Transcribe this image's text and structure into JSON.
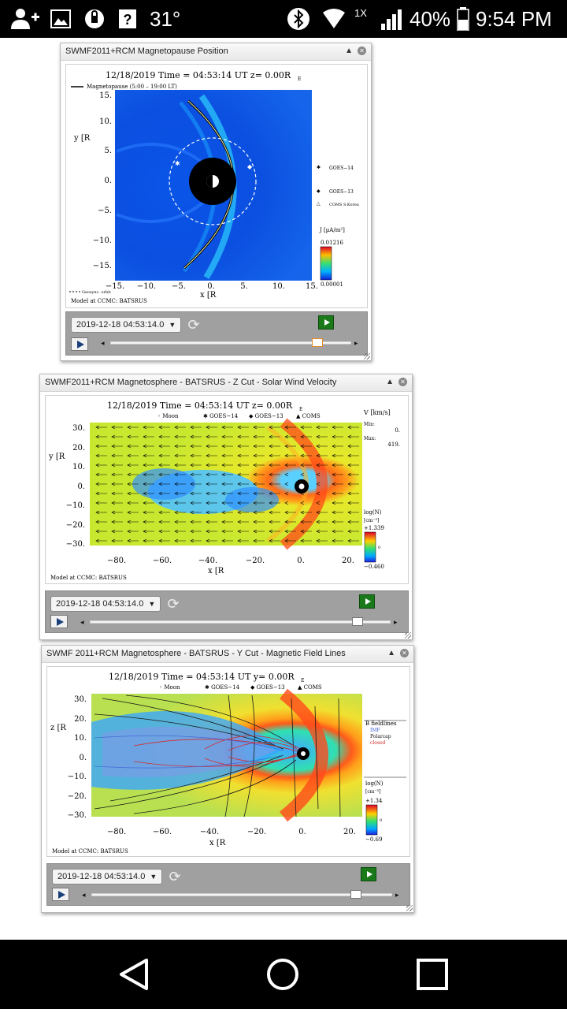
{
  "status_bar": {
    "temperature": "31°",
    "network": "1X",
    "battery": "40%",
    "time": "9:54 PM"
  },
  "panels": [
    {
      "title": "SWMF2011+RCM Magnetopause Position",
      "plot_header": "12/18/2019 Time = 04:53:14 UT z= 0.00R",
      "plot_header_sub": "E",
      "legend_line": "Magnetopause (5:00 – 19:00 LT)",
      "y_label": "y [R",
      "y_ticks": [
        "15.",
        "10.",
        "5.",
        "0.",
        "−5.",
        "−10.",
        "−15."
      ],
      "x_ticks": [
        "−15.",
        "−10.",
        "−5.",
        "0.",
        "5.",
        "10.",
        "15."
      ],
      "x_label": "x [R",
      "geosync_label": "Geosync. orbit",
      "markers": [
        {
          "symbol": "✱",
          "label": "GOES−14"
        },
        {
          "symbol": "◆",
          "label": "GOES−13"
        },
        {
          "symbol": "△",
          "label": "COMS S.Korea"
        }
      ],
      "colorbar_label": "J [µA/m²]",
      "colorbar_max": "0.01216",
      "colorbar_min": "0.00001",
      "credit": "Model at CCMC: BATSRUS",
      "date_select": "2019-12-18 04:53:14.0",
      "slider_fraction": 0.86
    },
    {
      "title": "SWMF2011+RCM Magnetosphere - BATSRUS - Z Cut - Solar Wind Velocity",
      "plot_header": "12/18/2019 Time = 04:53:14 UT z= 0.00R",
      "plot_header_sub": "E",
      "legend_items": [
        "◦ Moon",
        "✱ GOES−14",
        "◆ GOES−13",
        "▲ COMS"
      ],
      "y_label": "y [R",
      "y_ticks": [
        "30.",
        "20.",
        "10.",
        "0.",
        "−10.",
        "−20.",
        "−30."
      ],
      "x_ticks": [
        "−80.",
        "−60.",
        "−40.",
        "−20.",
        "0.",
        "20."
      ],
      "x_label": "x [R",
      "vector_label": "V [km/s]",
      "vec_min_label": "Min:",
      "vec_min": "0.",
      "vec_max_label": "Max:",
      "vec_max": "419.",
      "colorbar_label": "log(N)",
      "colorbar_unit": "[cm⁻³]",
      "colorbar_max": "+1.339",
      "colorbar_mid": "0",
      "colorbar_min": "−0.460",
      "credit": "Model at CCMC: BATSRUS",
      "date_select": "2019-12-18 04:53:14.0",
      "slider_fraction": 0.89
    },
    {
      "title": "SWMF 2011+RCM Magnetosphere - BATSRUS - Y Cut - Magnetic Field Lines",
      "plot_header": "12/18/2019 Time = 04:53:14 UT y= 0.00R",
      "plot_header_sub": "E",
      "legend_items": [
        "◦ Moon",
        "✱ GOES−14",
        "◆ GOES−13",
        "▲ COMS"
      ],
      "y_label": "z [R",
      "y_ticks": [
        "30.",
        "20.",
        "10.",
        "0.",
        "−10.",
        "−20.",
        "−30."
      ],
      "x_ticks": [
        "−80.",
        "−60.",
        "−40.",
        "−20.",
        "0.",
        "20."
      ],
      "x_label": "x [R",
      "fieldline_title": "B fieldlines",
      "fieldline_types": [
        {
          "label": "IMF",
          "color": "#3b5bd6"
        },
        {
          "label": "Polarcap",
          "color": "#111111"
        },
        {
          "label": "closed",
          "color": "#d62a2a"
        }
      ],
      "colorbar_label": "log(N)",
      "colorbar_unit": "[cm⁻³]",
      "colorbar_max": "+1.34",
      "colorbar_mid": "0",
      "colorbar_min": "−0.69",
      "credit": "Model at CCMC: BATSRUS",
      "date_select": "2019-12-18 04:53:14.0",
      "slider_fraction": 0.88
    }
  ]
}
